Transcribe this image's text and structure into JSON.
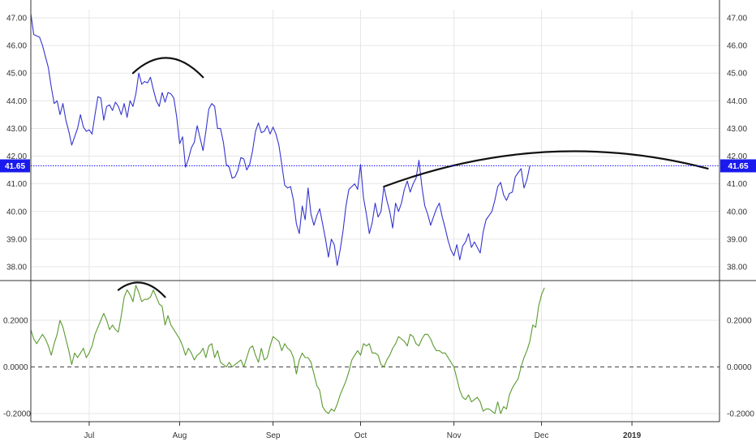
{
  "chart_data": [
    {
      "type": "line",
      "panel": "price",
      "y_ticks": [
        "47.00",
        "46.00",
        "45.00",
        "44.00",
        "43.00",
        "42.00",
        "41.00",
        "40.00",
        "39.00",
        "38.00"
      ],
      "ylim": [
        37.5,
        47.6
      ],
      "x_ticks": [
        {
          "label": "Jul",
          "x": 20
        },
        {
          "label": "Aug",
          "x": 51
        },
        {
          "label": "Sep",
          "x": 83
        },
        {
          "label": "Oct",
          "x": 113
        },
        {
          "label": "Nov",
          "x": 145
        },
        {
          "label": "Dec",
          "x": 175
        },
        {
          "label": "2019",
          "x": 206
        }
      ],
      "xlim": [
        0,
        236
      ],
      "price_badge": "41.65",
      "price_line_value": 41.65,
      "line_color": "#3535d0",
      "series": [
        {
          "values": [
            47.15,
            46.4,
            46.35,
            46.3,
            46.0,
            45.6,
            45.2,
            44.5,
            43.9,
            44.0,
            43.5,
            43.9,
            43.3,
            42.9,
            42.4,
            42.7,
            43.0,
            43.5,
            43.05,
            42.9,
            42.95,
            42.8,
            43.5,
            44.15,
            44.1,
            43.3,
            43.8,
            43.85,
            43.65,
            43.95,
            43.8,
            43.5,
            43.9,
            43.4,
            44.0,
            43.8,
            44.25,
            45.0,
            44.6,
            44.7,
            44.65,
            44.85,
            44.4,
            44.0,
            43.8,
            44.3,
            43.95,
            44.3,
            44.25,
            44.1,
            43.4,
            42.45,
            42.7,
            41.6,
            41.9,
            42.3,
            42.5,
            43.1,
            42.65,
            42.2,
            42.9,
            43.7,
            43.9,
            43.8,
            43.0,
            43.0,
            42.5,
            41.7,
            41.6,
            41.2,
            41.25,
            41.5,
            41.95,
            41.9,
            41.5,
            41.7,
            42.2,
            42.9,
            43.2,
            42.85,
            42.9,
            43.1,
            42.8,
            43.05,
            42.8,
            42.4,
            41.7,
            40.95,
            40.85,
            40.9,
            40.4,
            39.55,
            39.2,
            40.2,
            39.7,
            40.85,
            39.9,
            39.5,
            39.85,
            40.1,
            39.55,
            39.0,
            38.35,
            39.0,
            38.8,
            38.05,
            38.6,
            39.3,
            40.2,
            40.8,
            40.9,
            41.0,
            40.8,
            41.7,
            40.5,
            39.9,
            39.2,
            39.6,
            40.3,
            39.8,
            40.0,
            40.9,
            40.4,
            40.0,
            39.4,
            40.3,
            40.0,
            40.3,
            40.8,
            41.1,
            40.7,
            41.0,
            41.2,
            41.85,
            40.9,
            40.2,
            39.9,
            39.5,
            39.8,
            40.1,
            40.3,
            39.8,
            39.4,
            38.95,
            38.6,
            38.4,
            38.8,
            38.25,
            38.75,
            38.9,
            39.2,
            38.7,
            38.9,
            38.7,
            38.5,
            39.25,
            39.7,
            39.85,
            40.0,
            40.4,
            40.9,
            41.05,
            40.6,
            40.4,
            40.65,
            40.7,
            41.25,
            41.4,
            41.55,
            40.85,
            41.15,
            41.65
          ]
        }
      ],
      "annotations": [
        {
          "type": "arc",
          "from": [
            35,
            45.0
          ],
          "to": [
            59,
            44.85
          ]
        },
        {
          "type": "arc",
          "from": [
            121,
            40.9
          ],
          "to": [
            232,
            41.55
          ]
        }
      ]
    },
    {
      "type": "line",
      "panel": "indicator",
      "y_ticks": [
        "0.2000",
        "0.0000",
        "-0.2000"
      ],
      "ylim": [
        -0.22,
        0.36
      ],
      "zero_line": 0,
      "line_color": "#5a9a2e",
      "series": [
        {
          "values": [
            0.16,
            0.12,
            0.1,
            0.12,
            0.14,
            0.12,
            0.09,
            0.05,
            0.1,
            0.14,
            0.2,
            0.17,
            0.12,
            0.07,
            0.01,
            0.06,
            0.04,
            0.06,
            0.08,
            0.04,
            0.06,
            0.09,
            0.14,
            0.17,
            0.2,
            0.23,
            0.2,
            0.16,
            0.18,
            0.16,
            0.15,
            0.22,
            0.3,
            0.33,
            0.31,
            0.28,
            0.35,
            0.32,
            0.28,
            0.29,
            0.29,
            0.3,
            0.33,
            0.3,
            0.27,
            0.26,
            0.18,
            0.22,
            0.18,
            0.16,
            0.14,
            0.12,
            0.09,
            0.05,
            0.08,
            0.06,
            0.03,
            0.05,
            0.06,
            0.08,
            0.04,
            0.09,
            0.1,
            0.04,
            0.07,
            0.02,
            0.01,
            0.0,
            0.02,
            0.0,
            0.01,
            0.02,
            0.03,
            0.0,
            0.04,
            0.08,
            0.09,
            0.05,
            0.02,
            0.08,
            0.03,
            0.04,
            0.09,
            0.13,
            0.12,
            0.11,
            0.07,
            0.1,
            0.08,
            0.07,
            0.04,
            -0.03,
            0.03,
            0.06,
            0.04,
            0.04,
            0.02,
            -0.03,
            -0.08,
            -0.1,
            -0.17,
            -0.19,
            -0.2,
            -0.18,
            -0.19,
            -0.16,
            -0.12,
            -0.09,
            -0.06,
            -0.02,
            0.03,
            0.05,
            0.07,
            0.05,
            0.1,
            0.09,
            0.1,
            0.06,
            0.06,
            0.05,
            0.01,
            0.0,
            0.03,
            0.05,
            0.08,
            0.1,
            0.13,
            0.12,
            0.11,
            0.09,
            0.14,
            0.13,
            0.1,
            0.09,
            0.12,
            0.14,
            0.14,
            0.12,
            0.09,
            0.07,
            0.07,
            0.06,
            0.06,
            0.04,
            0.02,
            0.0,
            -0.05,
            -0.1,
            -0.13,
            -0.14,
            -0.12,
            -0.15,
            -0.14,
            -0.13,
            -0.15,
            -0.19,
            -0.18,
            -0.18,
            -0.19,
            -0.2,
            -0.15,
            -0.2,
            -0.17,
            -0.18,
            -0.12,
            -0.09,
            -0.07,
            -0.05,
            0.0,
            0.04,
            0.07,
            0.11,
            0.18,
            0.17,
            0.26,
            0.31,
            0.34
          ]
        }
      ],
      "annotations": [
        {
          "type": "arc",
          "from": [
            30,
            0.33
          ],
          "to": [
            46,
            0.3
          ]
        }
      ]
    }
  ]
}
